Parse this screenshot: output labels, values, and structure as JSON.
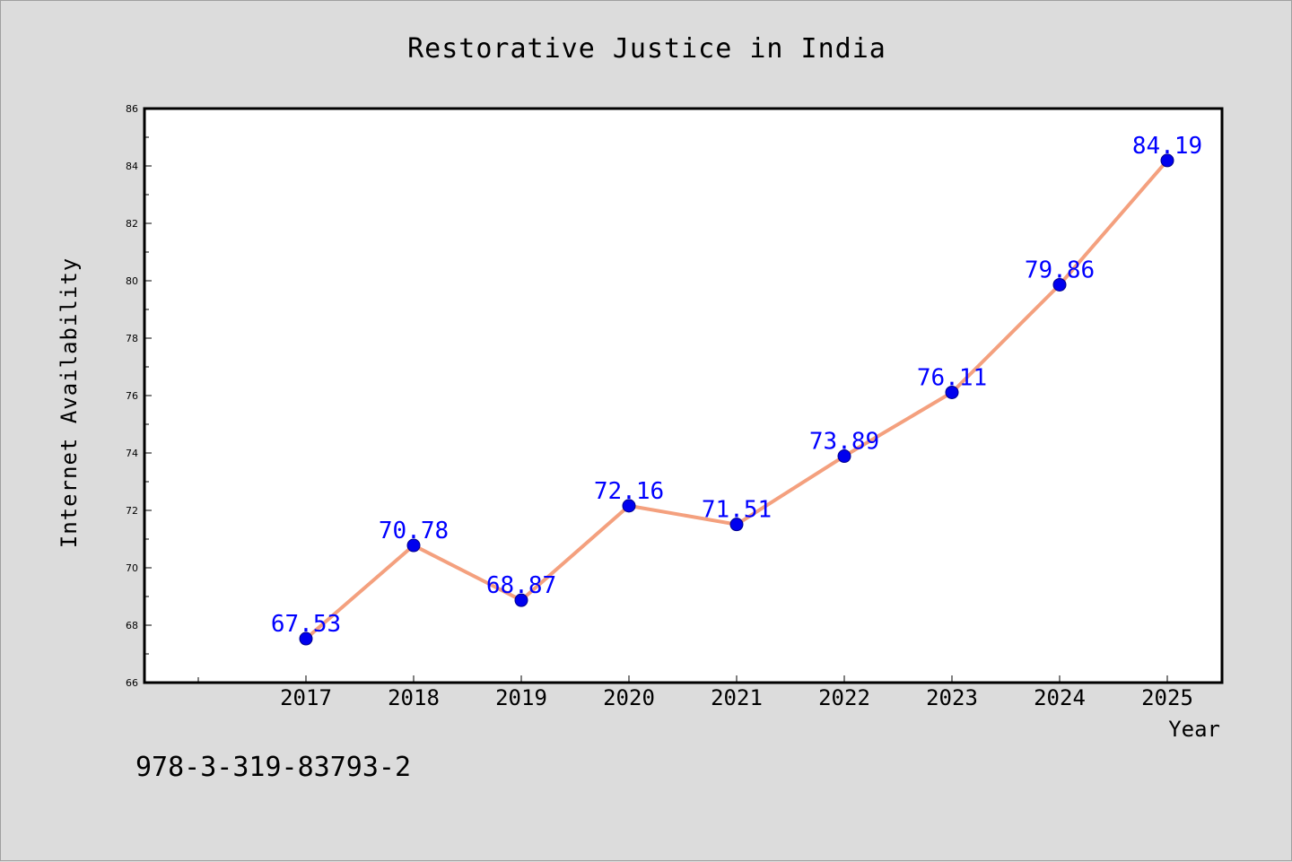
{
  "chart_data": {
    "type": "line",
    "title": "Restorative Justice in India",
    "xlabel": "Year",
    "ylabel": "Internet Availability",
    "categories": [
      "2017",
      "2018",
      "2019",
      "2020",
      "2021",
      "2022",
      "2023",
      "2024",
      "2025"
    ],
    "series": [
      {
        "values": [
          67.53,
          70.78,
          68.87,
          72.16,
          71.51,
          73.89,
          76.11,
          79.86,
          84.19
        ]
      }
    ],
    "data_labels": [
      "67.53",
      "70.78",
      "68.87",
      "72.16",
      "71.51",
      "73.89",
      "76.11",
      "79.86",
      "84.19"
    ],
    "ylim": [
      66,
      86
    ],
    "yticks": [
      "66",
      "68",
      "70",
      "72",
      "74",
      "76",
      "78",
      "80",
      "82",
      "84",
      "86"
    ],
    "grid": false,
    "colors": {
      "line": "#f4a07e",
      "marker": "#0000ee",
      "label": "#0000ff"
    }
  },
  "footer_text": "978-3-319-83793-2"
}
